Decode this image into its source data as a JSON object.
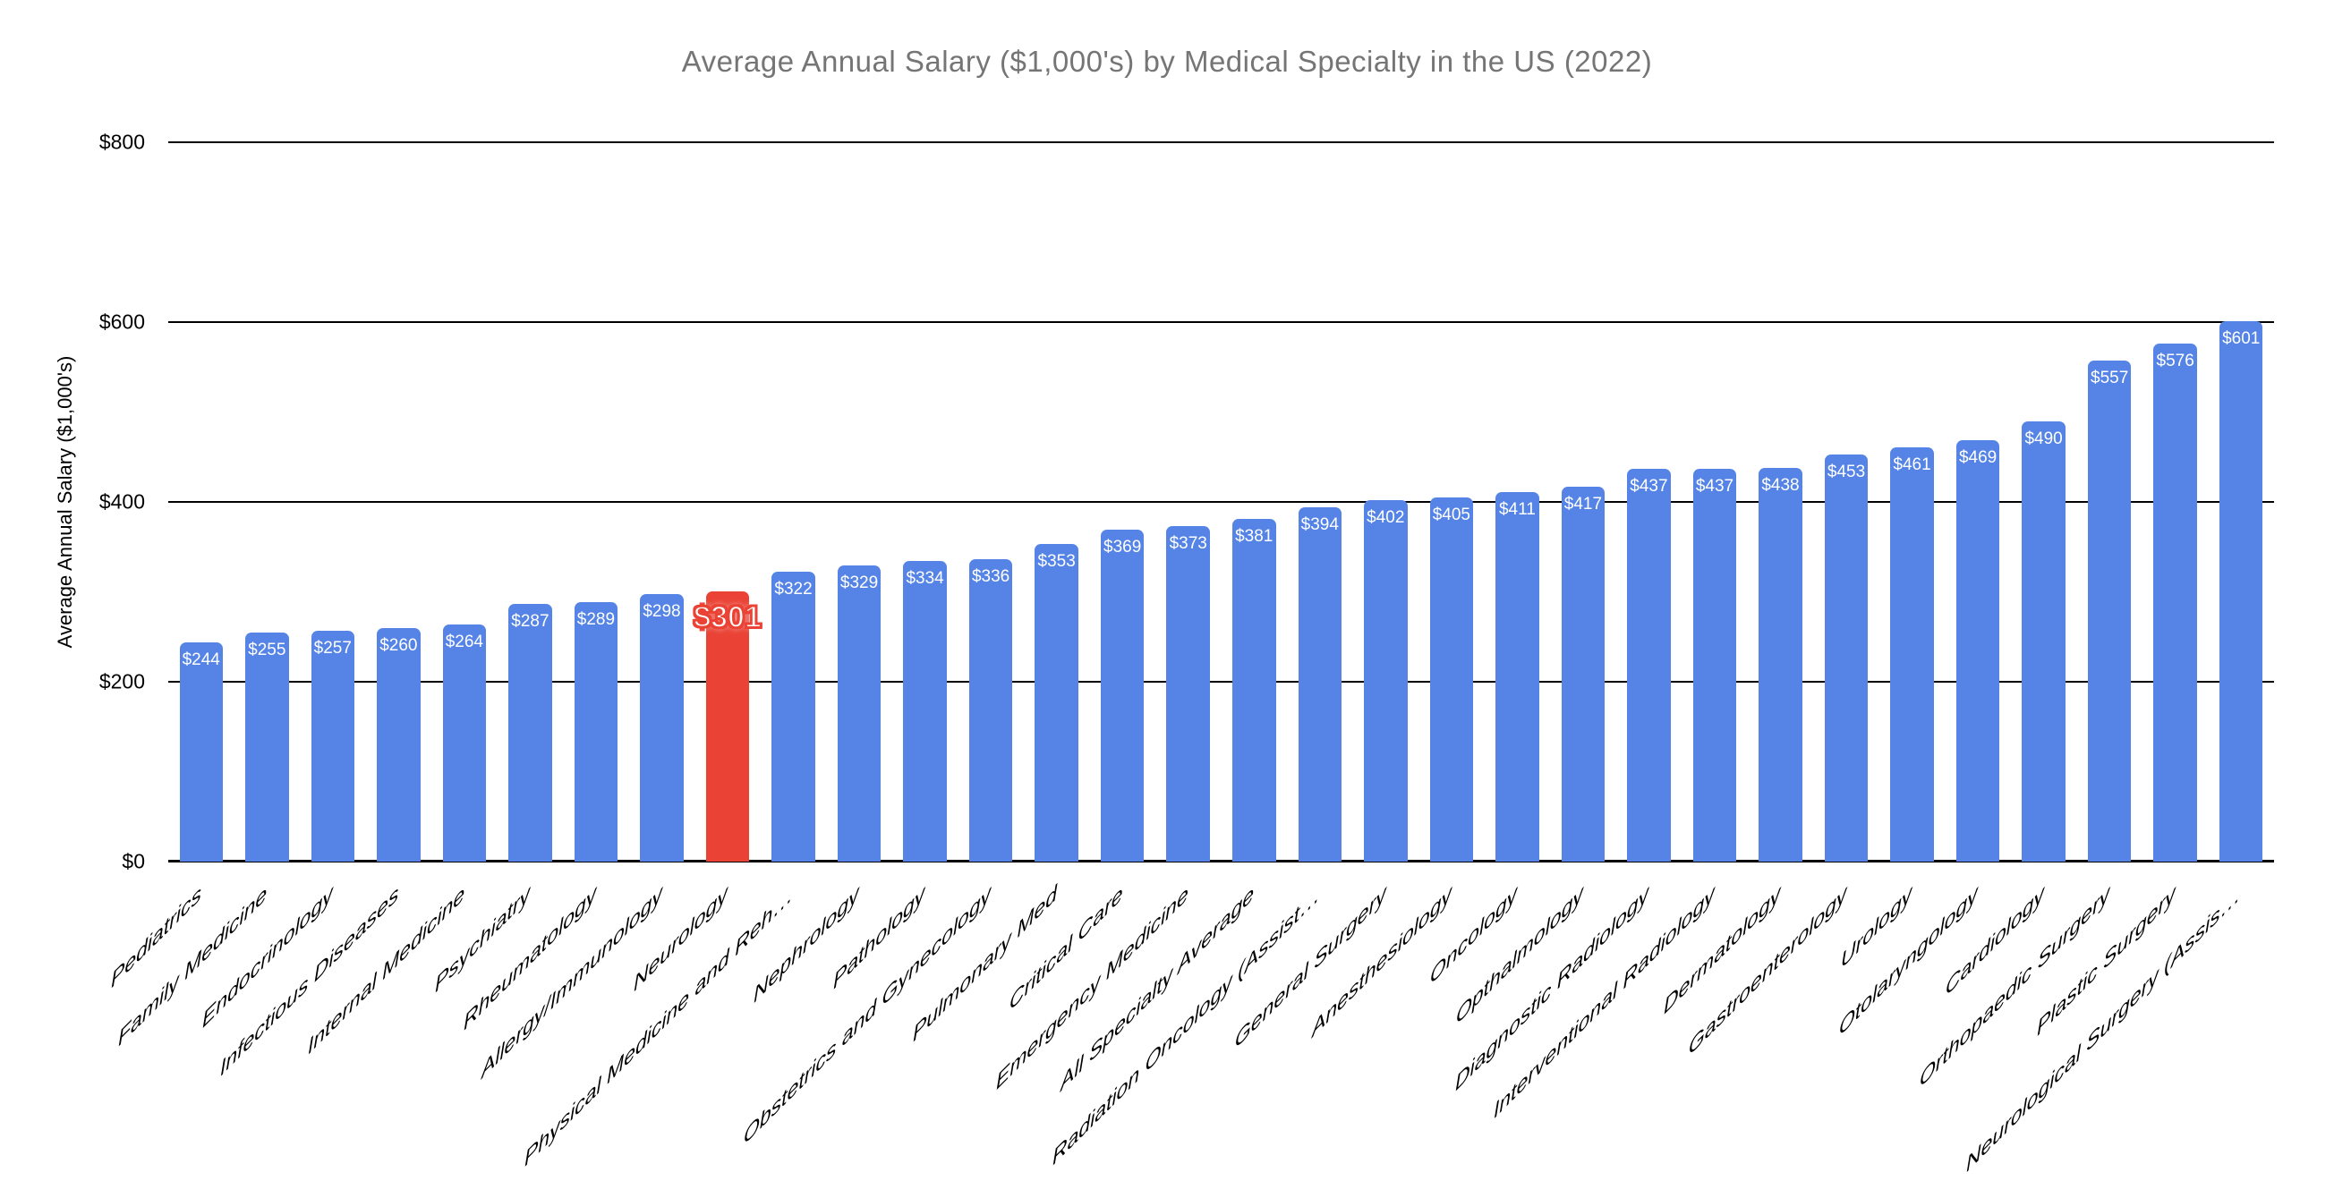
{
  "chart_data": {
    "type": "bar",
    "title": "Average Annual Salary ($1,000's) by Medical Specialty in the US (2022)",
    "xlabel": "",
    "ylabel": "Average Annual Salary ($1,000's)",
    "ylim": [
      0,
      800
    ],
    "grid": true,
    "legend_position": "none",
    "yticks": [
      {
        "value": 0,
        "label": "$0"
      },
      {
        "value": 200,
        "label": "$200"
      },
      {
        "value": 400,
        "label": "$400"
      },
      {
        "value": 600,
        "label": "$600"
      },
      {
        "value": 800,
        "label": "$800"
      }
    ],
    "categories": [
      "Pediatrics",
      "Family Medicine",
      "Endocrinology",
      "Infectious Diseases",
      "Internal Medicine",
      "Psychiatry",
      "Rheumatology",
      "Allergy/Immunology",
      "Neurology",
      "Physical Medicine and Reh…",
      "Nephrology",
      "Pathology",
      "Obstetrics and Gynecology",
      "Pulmonary Med",
      "Critical Care",
      "Emergency Medicine",
      "All Specialty Average",
      "Radiation Oncology (Assist…",
      "General Surgery",
      "Anesthesiology",
      "Oncology",
      "Opthalmology",
      "Diagnostic Radiology",
      "Interventional Radiology",
      "Dermatology",
      "Gastroenterology",
      "Urology",
      "Otolaryngology",
      "Cardiology",
      "Orthopaedic Surgery",
      "Plastic Surgery",
      "Neurological Surgery (Assis…"
    ],
    "values": [
      244,
      255,
      257,
      260,
      264,
      287,
      289,
      298,
      301,
      322,
      329,
      334,
      336,
      353,
      369,
      373,
      381,
      394,
      402,
      405,
      411,
      417,
      437,
      437,
      438,
      453,
      461,
      469,
      490,
      557,
      576,
      601
    ],
    "bar_labels": [
      "$244",
      "$255",
      "$257",
      "$260",
      "$264",
      "$287",
      "$289",
      "$298",
      "$301",
      "$322",
      "$329",
      "$334",
      "$336",
      "$353",
      "$369",
      "$373",
      "$381",
      "$394",
      "$402",
      "$405",
      "$411",
      "$417",
      "$437",
      "$437",
      "$438",
      "$453",
      "$461",
      "$469",
      "$490",
      "$557",
      "$576",
      "$601"
    ],
    "highlight_index": 8,
    "highlight_label": "$301",
    "colors": {
      "bar": "#5584e6",
      "highlight": "#ea4335",
      "title_text": "#757575",
      "axis_text": "#000000",
      "gridline": "#000000",
      "value_label_text": "#ffffff"
    }
  }
}
